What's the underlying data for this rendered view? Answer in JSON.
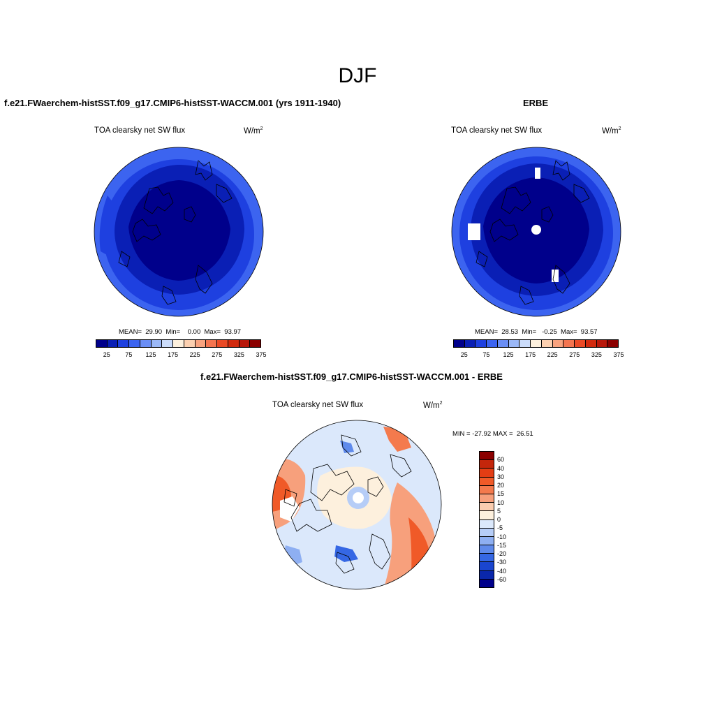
{
  "figure": {
    "title": "DJF"
  },
  "panels": [
    {
      "title": "f.e21.FWaerchem-histSST.f09_g17.CMIP6-histSST-WACCM.001 (yrs 1911-1940)",
      "variable": "TOA clearsky net SW flux",
      "units": "W/m",
      "units_sup": "2",
      "stats": "MEAN=  29.90  Min=    0.00  Max=  93.97"
    },
    {
      "title": "ERBE",
      "variable": "TOA clearsky net SW flux",
      "units": "W/m",
      "units_sup": "2",
      "stats": "MEAN=  28.53  Min=   -0.25  Max=  93.57"
    },
    {
      "title": "f.e21.FWaerchem-histSST.f09_g17.CMIP6-histSST-WACCM.001 - ERBE",
      "variable": "TOA clearsky net SW flux",
      "units": "W/m",
      "units_sup": "2",
      "stats": "MIN = -27.92 MAX =  26.51"
    }
  ],
  "colorbar_abs": {
    "colors": [
      "#00008b",
      "#0a1fb5",
      "#1e40e0",
      "#3c64f0",
      "#6a8ef5",
      "#9bb8f7",
      "#cbdcfa",
      "#fdf0dd",
      "#fcd0b0",
      "#f9a37f",
      "#f47550",
      "#ea4a26",
      "#d12a0e",
      "#b8170a",
      "#8b0000"
    ],
    "tick_labels": [
      "25",
      "75",
      "125",
      "175",
      "225",
      "275",
      "325",
      "375"
    ]
  },
  "colorbar_diff": {
    "colors": [
      "#8b0000",
      "#c4260b",
      "#e33d14",
      "#f05a28",
      "#f47a4d",
      "#f7a07c",
      "#fbcdb0",
      "#fdf0dd",
      "#dbe8fb",
      "#b6cdf7",
      "#8eaff2",
      "#5f8aeb",
      "#3567e4",
      "#1a45cf",
      "#0a27ab",
      "#00008b"
    ],
    "tick_labels": [
      "60",
      "40",
      "30",
      "20",
      "15",
      "10",
      "5",
      "0",
      "-5",
      "-10",
      "-15",
      "-20",
      "-30",
      "-40",
      "-60"
    ]
  }
}
